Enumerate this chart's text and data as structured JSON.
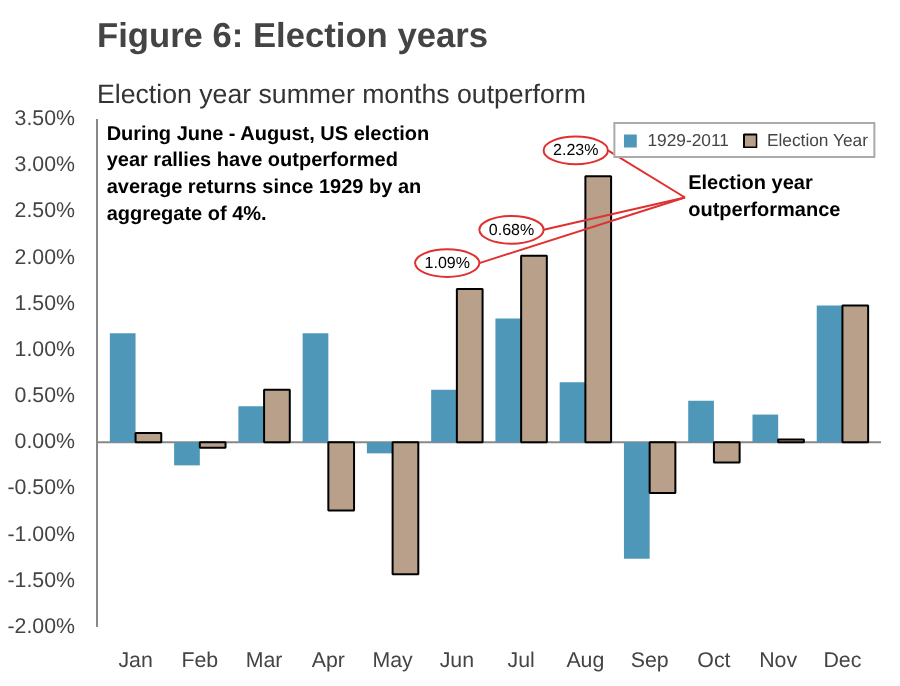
{
  "chart_data": {
    "type": "bar",
    "title": "Figure 6:  Election years",
    "subtitle": "Election year summer months outperform",
    "categories": [
      "Jan",
      "Feb",
      "Mar",
      "Apr",
      "May",
      "Jun",
      "Jul",
      "Aug",
      "Sep",
      "Oct",
      "Nov",
      "Dec"
    ],
    "series": [
      {
        "name": "1929-2011",
        "color": "#4f97b8",
        "values": [
          1.18,
          -0.25,
          0.39,
          1.18,
          -0.12,
          0.57,
          1.34,
          0.65,
          -1.26,
          0.45,
          0.3,
          1.48
        ]
      },
      {
        "name": "Election Year",
        "color": "#b8a08a",
        "values": [
          0.1,
          -0.06,
          0.57,
          -0.74,
          -1.43,
          1.66,
          2.02,
          2.88,
          -0.55,
          -0.22,
          0.03,
          1.48
        ]
      }
    ],
    "ylim": [
      -2.0,
      3.5
    ],
    "yticks": [
      {
        "value": -2.0,
        "label": "-2.00%"
      },
      {
        "value": -1.5,
        "label": "-1.50%"
      },
      {
        "value": -1.0,
        "label": "-1.00%"
      },
      {
        "value": -0.5,
        "label": "-0.50%"
      },
      {
        "value": 0.0,
        "label": "0.00%"
      },
      {
        "value": 0.5,
        "label": "0.50%"
      },
      {
        "value": 1.0,
        "label": "1.00%"
      },
      {
        "value": 1.5,
        "label": "1.50%"
      },
      {
        "value": 2.0,
        "label": "2.00%"
      },
      {
        "value": 2.5,
        "label": "2.50%"
      },
      {
        "value": 3.0,
        "label": "3.00%"
      },
      {
        "value": 3.5,
        "label": "3.50%"
      }
    ],
    "legend": "top right",
    "annotations": [
      "During June - August, US election year rallies have outperformed average returns since 1929 by an aggregate of 4%.",
      {
        "text": "1.09%",
        "x": "Jun",
        "y": 1.66
      },
      {
        "text": "0.68%",
        "x": "Jul",
        "y": 2.02
      },
      {
        "text": "2.23%",
        "x": "Aug",
        "y": 2.88
      },
      "Election year outperformance"
    ]
  }
}
